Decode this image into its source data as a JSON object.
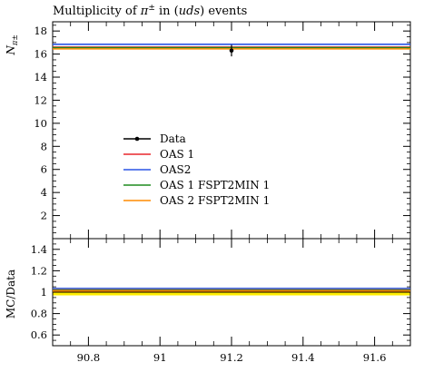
{
  "chart_data": {
    "type": "line",
    "title": "Multiplicity of π± in (uds) events",
    "title_parts": {
      "before": "Multiplicity of ",
      "sym": "π",
      "sup": "±",
      "mid": " in (",
      "italic": "uds",
      "after": ") events"
    },
    "ylabel": {
      "main": "N",
      "sub": "π±"
    },
    "ratio_ylabel": "MC/Data",
    "xlim": [
      90.7,
      91.7
    ],
    "ylim": [
      0,
      18.8
    ],
    "ratio_ylim": [
      0.5,
      1.5
    ],
    "x_ticks": [
      {
        "value": 90.8,
        "label": "90.8"
      },
      {
        "value": 91.0,
        "label": "91"
      },
      {
        "value": 91.2,
        "label": "91.2"
      },
      {
        "value": 91.4,
        "label": "91.4"
      },
      {
        "value": 91.6,
        "label": "91.6"
      }
    ],
    "y_ticks": [
      {
        "value": 2,
        "label": "2"
      },
      {
        "value": 4,
        "label": "4"
      },
      {
        "value": 6,
        "label": "6"
      },
      {
        "value": 8,
        "label": "8"
      },
      {
        "value": 10,
        "label": "10"
      },
      {
        "value": 12,
        "label": "12"
      },
      {
        "value": 14,
        "label": "14"
      },
      {
        "value": 16,
        "label": "16"
      },
      {
        "value": 18,
        "label": "18"
      }
    ],
    "ratio_ticks": [
      {
        "value": 0.6,
        "label": "0.6"
      },
      {
        "value": 0.8,
        "label": "0.8"
      },
      {
        "value": 1.0,
        "label": "1"
      },
      {
        "value": 1.2,
        "label": "1.2"
      },
      {
        "value": 1.4,
        "label": "1.4"
      }
    ],
    "data_point": {
      "x": 91.2,
      "y": 16.3,
      "yerr": 0.5,
      "label": "Data",
      "ratio_band": [
        0.97,
        1.03
      ]
    },
    "series": [
      {
        "name": "OAS 1",
        "color": "#e8262b",
        "y": 16.6,
        "ratio": 1.02
      },
      {
        "name": "OAS2",
        "color": "#2a55e6",
        "y": 16.85,
        "ratio": 1.035
      },
      {
        "name": "OAS 1 FSPT2MIN 1",
        "color": "#1f8b1f",
        "y": 16.55,
        "ratio": 1.015
      },
      {
        "name": "OAS 2 FSPT2MIN 1",
        "color": "#ff8c00",
        "y": 16.45,
        "ratio": 1.01
      }
    ],
    "legend_position": "middle-left",
    "grid": false
  }
}
